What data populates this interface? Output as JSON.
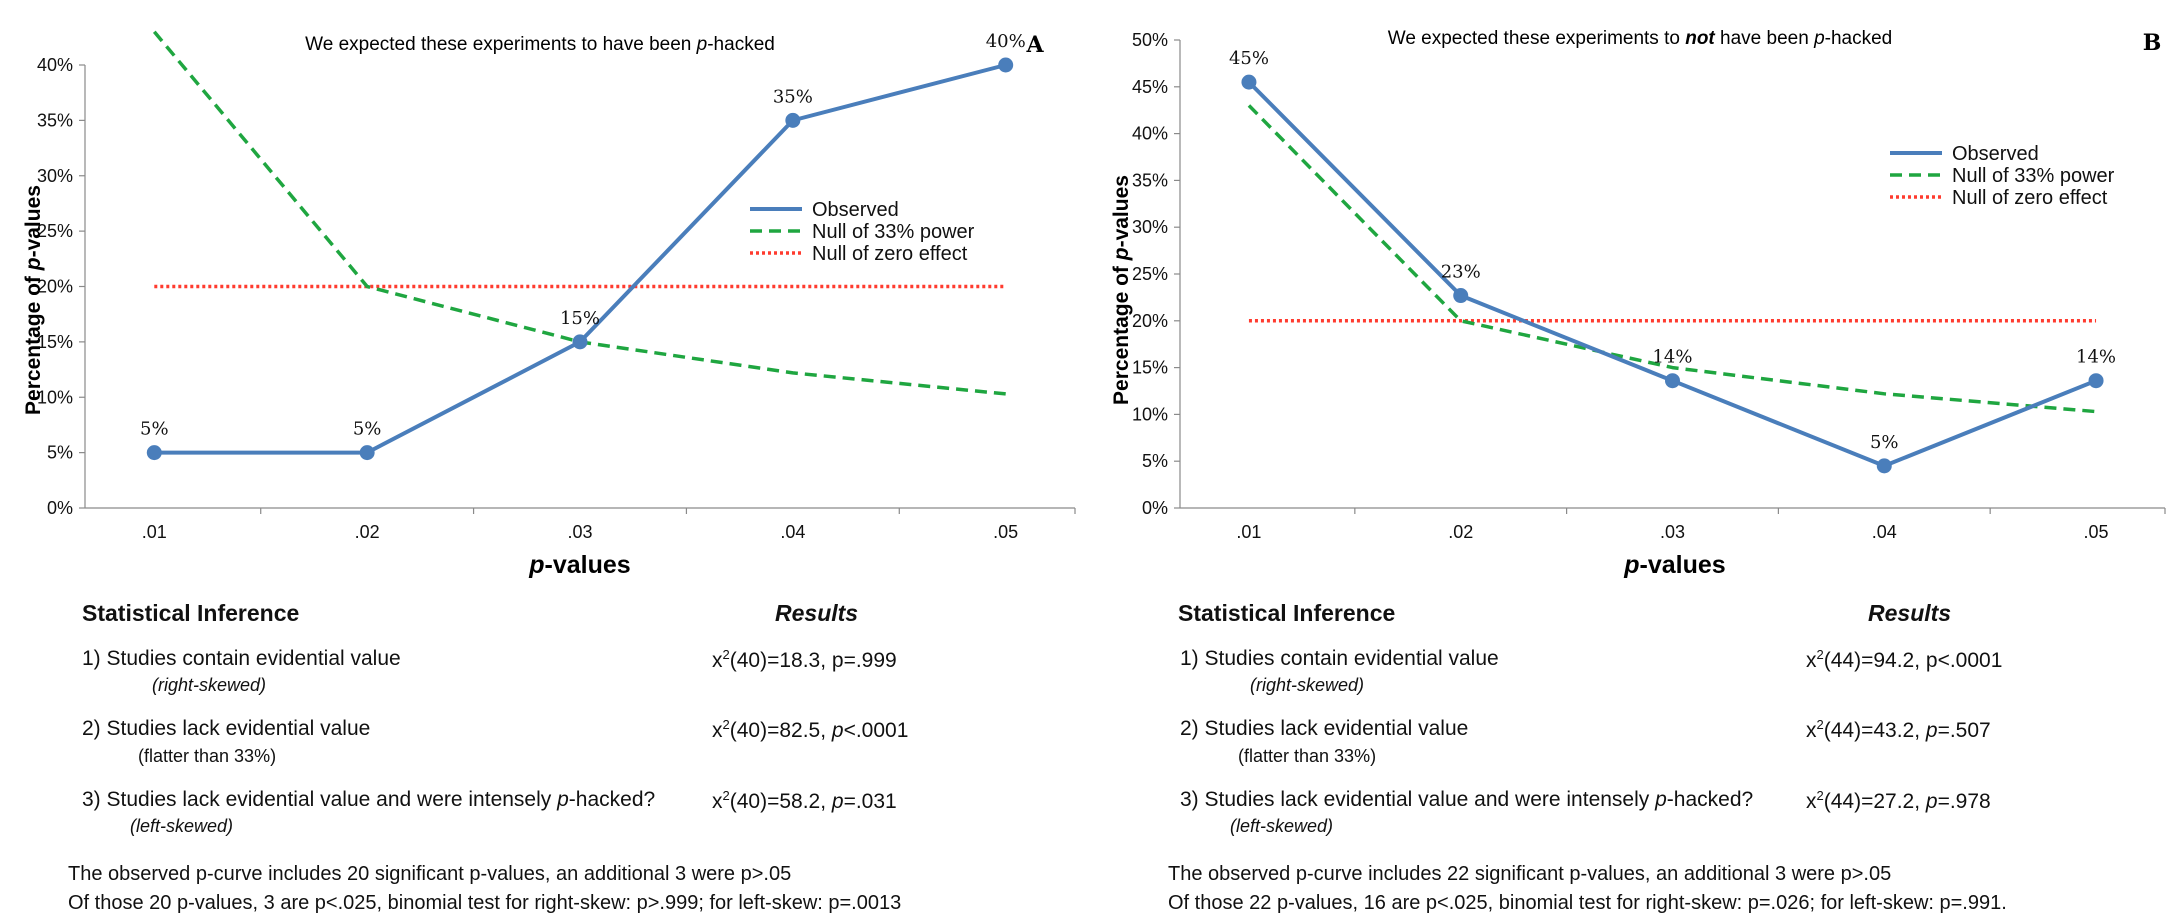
{
  "chart_data": [
    {
      "type": "line",
      "panel_letter": "A",
      "title": {
        "pre": "We expected these experiments to have been ",
        "it": "p",
        "post": "-hacked",
        "mid": ""
      },
      "xlabel": {
        "it": "p",
        "rest": "-values"
      },
      "ylabel": {
        "pre": "Percentage of ",
        "it": "p",
        "post": "-values"
      },
      "categories": [
        ".01",
        ".02",
        ".03",
        ".04",
        ".05"
      ],
      "ylim": [
        0,
        40
      ],
      "yticks": [
        "0%",
        "5%",
        "10%",
        "15%",
        "20%",
        "25%",
        "30%",
        "35%",
        "40%"
      ],
      "legend_position": "right-middle",
      "series": [
        {
          "name": "Observed",
          "style": "solid",
          "color": "#4a7ebb",
          "values": [
            5,
            5,
            15,
            35,
            40
          ],
          "labels": [
            "5%",
            "5%",
            "15%",
            "35%",
            "40%"
          ]
        },
        {
          "name": "Null of 33% power",
          "style": "dashed",
          "color": "#1fa640",
          "values": [
            43,
            20,
            15,
            12.2,
            10.3
          ]
        },
        {
          "name": "Null of zero effect",
          "style": "dotted",
          "color": "#ff3b2f",
          "values": [
            20,
            20,
            20,
            20,
            20
          ]
        }
      ]
    },
    {
      "type": "line",
      "panel_letter": "B",
      "title": {
        "pre": "We expected these experiments to ",
        "mid": "not",
        "post2": " have been ",
        "it": "p",
        "post": "-hacked"
      },
      "xlabel": {
        "it": "p",
        "rest": "-values"
      },
      "ylabel": {
        "pre": "Percentage of ",
        "it": "p",
        "post": "-values"
      },
      "categories": [
        ".01",
        ".02",
        ".03",
        ".04",
        ".05"
      ],
      "ylim": [
        0,
        50
      ],
      "yticks": [
        "0%",
        "5%",
        "10%",
        "15%",
        "20%",
        "25%",
        "30%",
        "35%",
        "40%",
        "45%",
        "50%"
      ],
      "legend_position": "top-right",
      "series": [
        {
          "name": "Observed",
          "style": "solid",
          "color": "#4a7ebb",
          "values": [
            45.5,
            22.7,
            13.6,
            4.5,
            13.6
          ],
          "labels": [
            "45%",
            "23%",
            "14%",
            "5%",
            "14%"
          ]
        },
        {
          "name": "Null of 33% power",
          "style": "dashed",
          "color": "#1fa640",
          "values": [
            43,
            20,
            15,
            12.2,
            10.3
          ]
        },
        {
          "name": "Null of zero effect",
          "style": "dotted",
          "color": "#ff3b2f",
          "values": [
            20,
            20,
            20,
            20,
            20
          ]
        }
      ]
    }
  ],
  "stats": [
    {
      "heading": "Statistical Inference",
      "results_heading": "Results",
      "rows": [
        {
          "label": "1) Studies contain evidential value",
          "label_pre": "",
          "label_it": "",
          "label_post": "",
          "sub": "(right-skewed)",
          "chi": "x",
          "sup": "2",
          "res_a": "(40)=18.3, p=.999",
          "res_p": "",
          "res_b": ""
        },
        {
          "label": "2) Studies lack evidential value",
          "label_pre": "",
          "label_it": "",
          "label_post": "",
          "sub": "(flatter than 33%)",
          "chi": "x",
          "sup": "2",
          "res_a": "(40)=82.5, ",
          "res_p": "p",
          "res_b": "<.0001"
        },
        {
          "label": "",
          "label_pre": "3) Studies lack evidential value and were intensely ",
          "label_it": "p",
          "label_post": "-hacked?",
          "sub": "(left-skewed)",
          "chi": "x",
          "sup": "2",
          "res_a": "(40)=58.2, ",
          "res_p": "p",
          "res_b": "=.031"
        }
      ],
      "foot1": "The observed p-curve includes 20 significant p-values, an additional 3 were p>.05",
      "foot2": "Of those 20 p-values, 3 are p<.025, binomial test for right-skew: p>.999; for left-skew: p=.0013"
    },
    {
      "heading": "Statistical Inference",
      "results_heading": "Results",
      "rows": [
        {
          "label": "1) Studies contain evidential value",
          "label_pre": "",
          "label_it": "",
          "label_post": "",
          "sub": "(right-skewed)",
          "chi": "x",
          "sup": "2",
          "res_a": "(44)=94.2, p<.0001",
          "res_p": "",
          "res_b": ""
        },
        {
          "label": "2) Studies lack evidential value",
          "label_pre": "",
          "label_it": "",
          "label_post": "",
          "sub": "(flatter than 33%)",
          "chi": "x",
          "sup": "2",
          "res_a": "(44)=43.2, ",
          "res_p": "p",
          "res_b": "=.507"
        },
        {
          "label": "",
          "label_pre": "3) Studies lack evidential value and were intensely ",
          "label_it": "p",
          "label_post": "-hacked?",
          "sub": "(left-skewed)",
          "chi": "x",
          "sup": "2",
          "res_a": "(44)=27.2, ",
          "res_p": "p",
          "res_b": "=.978"
        }
      ],
      "foot1": "The observed p-curve includes 22 significant p-values, an additional 3 were p>.05",
      "foot2": "Of those 22 p-values, 16 are p<.025, binomial test for right-skew: p=.026; for left-skew: p=.991."
    }
  ]
}
